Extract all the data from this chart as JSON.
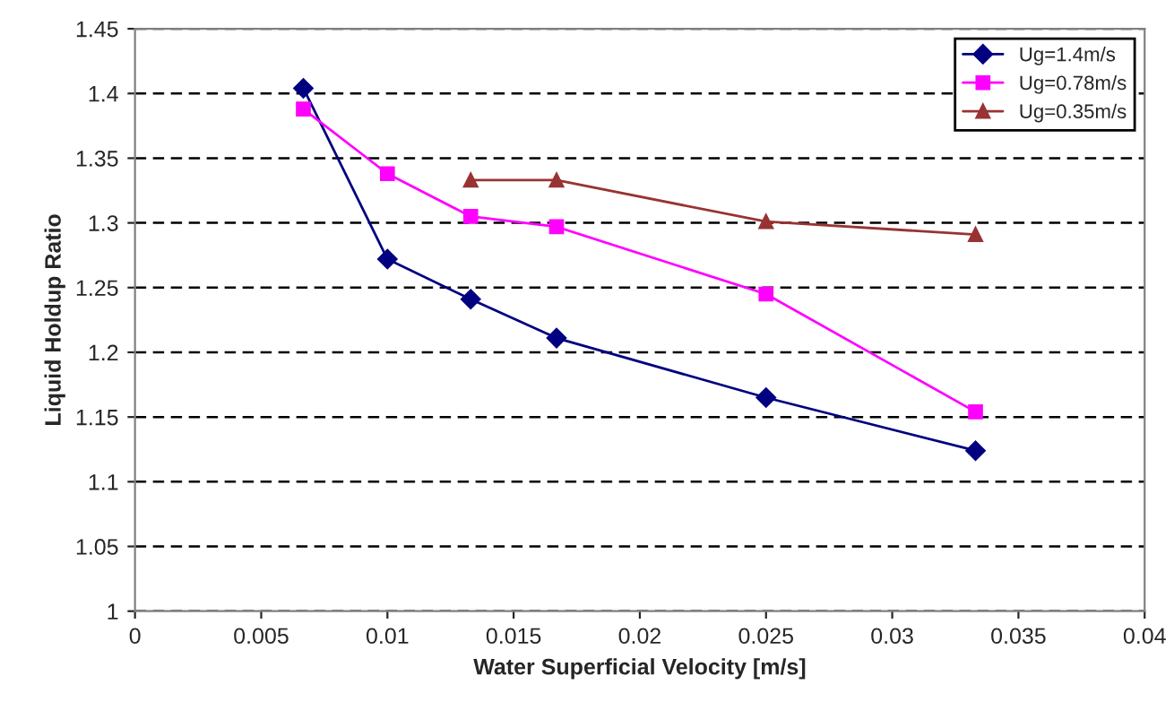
{
  "chart_data": {
    "type": "line",
    "xlabel": "Water Superficial Velocity [m/s]",
    "ylabel": "Liquid Holdup Ratio",
    "xlim": [
      0,
      0.04
    ],
    "xticks": [
      0,
      0.005,
      0.01,
      0.015,
      0.02,
      0.025,
      0.03,
      0.035,
      0.04
    ],
    "ylim": [
      1,
      1.45
    ],
    "yticks": [
      1,
      1.05,
      1.1,
      1.15,
      1.2,
      1.25,
      1.3,
      1.35,
      1.4,
      1.45
    ],
    "grid": "y",
    "legend": "top right",
    "series": [
      {
        "name": "Ug=1.4m/s",
        "color": "#000080",
        "marker": "diamond",
        "x": [
          0.00667,
          0.01,
          0.0133,
          0.0167,
          0.025,
          0.0333
        ],
        "values": [
          1.404,
          1.272,
          1.241,
          1.211,
          1.165,
          1.124
        ]
      },
      {
        "name": "Ug=0.78m/s",
        "color": "#ff00ff",
        "marker": "square",
        "x": [
          0.00667,
          0.01,
          0.0133,
          0.0167,
          0.025,
          0.0333
        ],
        "values": [
          1.388,
          1.338,
          1.305,
          1.297,
          1.245,
          1.154
        ]
      },
      {
        "name": "Ug=0.35m/s",
        "color": "#993333",
        "marker": "triangle",
        "x": [
          0.0133,
          0.0167,
          0.025,
          0.0333
        ],
        "values": [
          1.333,
          1.333,
          1.301,
          1.291
        ]
      }
    ]
  }
}
